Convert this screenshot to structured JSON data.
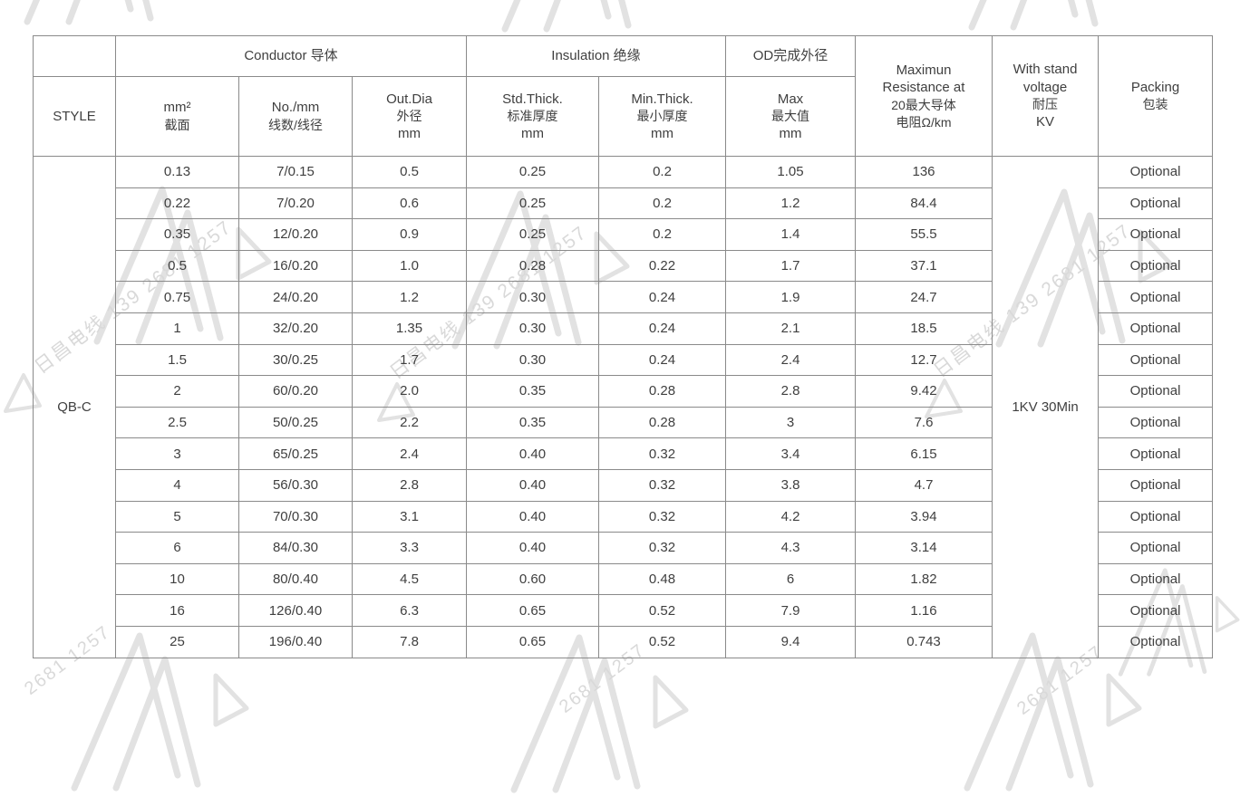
{
  "watermark": {
    "text": "日昌电线 139 2681 1257",
    "fragment": "2681 1257",
    "color": "#dcdcdc"
  },
  "table": {
    "header": {
      "style": "STYLE",
      "conductor_group": "Conductor 导体",
      "insulation_group": "Insulation 绝缘",
      "od_group": "OD完成外径",
      "mm2": [
        "mm²",
        "截面"
      ],
      "no_mm": [
        "No./mm",
        "线数/线径"
      ],
      "out_dia": [
        "Out.Dia",
        "外径",
        "mm"
      ],
      "std_thick": [
        "Std.Thick.",
        "标准厚度",
        "mm"
      ],
      "min_thick": [
        "Min.Thick.",
        "最小厚度",
        "mm"
      ],
      "max": [
        "Max",
        "最大值",
        "mm"
      ],
      "resistance": [
        "Maximun",
        "Resistance at",
        "20最大导体",
        "电阻Ω/km"
      ],
      "withstand": [
        "With stand",
        "voltage",
        "耐压",
        "KV"
      ],
      "packing": [
        "Packing",
        "包装"
      ]
    },
    "style_value": "QB-C",
    "withstand_value": "1KV 30Min",
    "rows": [
      [
        "0.13",
        "7/0.15",
        "0.5",
        "0.25",
        "0.2",
        "1.05",
        "136",
        "Optional"
      ],
      [
        "0.22",
        "7/0.20",
        "0.6",
        "0.25",
        "0.2",
        "1.2",
        "84.4",
        "Optional"
      ],
      [
        "0.35",
        "12/0.20",
        "0.9",
        "0.25",
        "0.2",
        "1.4",
        "55.5",
        "Optional"
      ],
      [
        "0.5",
        "16/0.20",
        "1.0",
        "0.28",
        "0.22",
        "1.7",
        "37.1",
        "Optional"
      ],
      [
        "0.75",
        "24/0.20",
        "1.2",
        "0.30",
        "0.24",
        "1.9",
        "24.7",
        "Optional"
      ],
      [
        "1",
        "32/0.20",
        "1.35",
        "0.30",
        "0.24",
        "2.1",
        "18.5",
        "Optional"
      ],
      [
        "1.5",
        "30/0.25",
        "1.7",
        "0.30",
        "0.24",
        "2.4",
        "12.7",
        "Optional"
      ],
      [
        "2",
        "60/0.20",
        "2.0",
        "0.35",
        "0.28",
        "2.8",
        "9.42",
        "Optional"
      ],
      [
        "2.5",
        "50/0.25",
        "2.2",
        "0.35",
        "0.28",
        "3",
        "7.6",
        "Optional"
      ],
      [
        "3",
        "65/0.25",
        "2.4",
        "0.40",
        "0.32",
        "3.4",
        "6.15",
        "Optional"
      ],
      [
        "4",
        "56/0.30",
        "2.8",
        "0.40",
        "0.32",
        "3.8",
        "4.7",
        "Optional"
      ],
      [
        "5",
        "70/0.30",
        "3.1",
        "0.40",
        "0.32",
        "4.2",
        "3.94",
        "Optional"
      ],
      [
        "6",
        "84/0.30",
        "3.3",
        "0.40",
        "0.32",
        "4.3",
        "3.14",
        "Optional"
      ],
      [
        "10",
        "80/0.40",
        "4.5",
        "0.60",
        "0.48",
        "6",
        "1.82",
        "Optional"
      ],
      [
        "16",
        "126/0.40",
        "6.3",
        "0.65",
        "0.52",
        "7.9",
        "1.16",
        "Optional"
      ],
      [
        "25",
        "196/0.40",
        "7.8",
        "0.65",
        "0.52",
        "9.4",
        "0.743",
        "Optional"
      ]
    ]
  }
}
